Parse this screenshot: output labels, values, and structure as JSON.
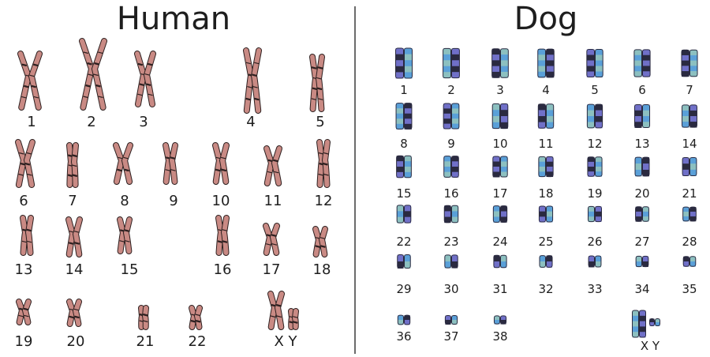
{
  "human": {
    "title": "Human",
    "chromosome_color": "#c98a84",
    "band_color": "#2d2020",
    "labels": [
      "1",
      "2",
      "3",
      "4",
      "5",
      "6",
      "7",
      "8",
      "9",
      "10",
      "11",
      "12",
      "13",
      "14",
      "15",
      "16",
      "17",
      "18",
      "19",
      "20",
      "21",
      "22",
      "X Y"
    ]
  },
  "dog": {
    "title": "Dog",
    "chromosome_colors": [
      "#7070c8",
      "#5aa0d8",
      "#2a2a40",
      "#8cc0c0"
    ],
    "labels": [
      "1",
      "2",
      "3",
      "4",
      "5",
      "6",
      "7",
      "8",
      "9",
      "10",
      "11",
      "12",
      "13",
      "14",
      "15",
      "16",
      "17",
      "18",
      "19",
      "20",
      "21",
      "22",
      "23",
      "24",
      "25",
      "26",
      "27",
      "28",
      "29",
      "30",
      "31",
      "32",
      "33",
      "34",
      "35",
      "36",
      "37",
      "38",
      "X Y"
    ]
  }
}
